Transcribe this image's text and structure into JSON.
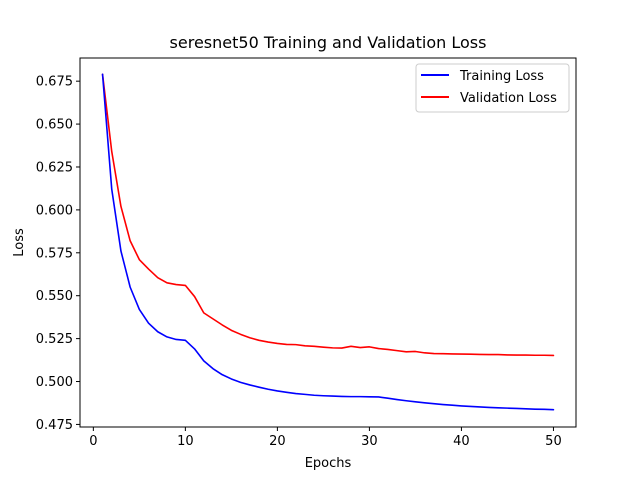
{
  "chart_data": {
    "type": "line",
    "title": "seresnet50 Training and Validation Loss",
    "xlabel": "Epochs",
    "ylabel": "Loss",
    "xlim": [
      -1.45,
      52.45
    ],
    "ylim": [
      0.4735,
      0.6885
    ],
    "xticks": [
      0,
      10,
      20,
      30,
      40,
      50
    ],
    "yticks": [
      0.475,
      0.5,
      0.525,
      0.55,
      0.575,
      0.6,
      0.625,
      0.65,
      0.675
    ],
    "ytick_labels": [
      "0.475",
      "0.500",
      "0.525",
      "0.550",
      "0.575",
      "0.600",
      "0.625",
      "0.650",
      "0.675"
    ],
    "grid": false,
    "legend_position": "top-right",
    "x": [
      1,
      2,
      3,
      4,
      5,
      6,
      7,
      8,
      9,
      10,
      11,
      12,
      13,
      14,
      15,
      16,
      17,
      18,
      19,
      20,
      21,
      22,
      23,
      24,
      25,
      26,
      27,
      28,
      29,
      30,
      31,
      32,
      33,
      34,
      35,
      36,
      37,
      38,
      39,
      40,
      41,
      42,
      43,
      44,
      45,
      46,
      47,
      48,
      49,
      50
    ],
    "series": [
      {
        "name": "Training Loss",
        "color": "#0000ff",
        "values": [
          0.679,
          0.612,
          0.576,
          0.555,
          0.542,
          0.534,
          0.529,
          0.526,
          0.5245,
          0.524,
          0.519,
          0.512,
          0.5075,
          0.504,
          0.5015,
          0.4995,
          0.498,
          0.4967,
          0.4955,
          0.4945,
          0.4937,
          0.493,
          0.4925,
          0.492,
          0.4917,
          0.4915,
          0.4913,
          0.4912,
          0.4912,
          0.4911,
          0.491,
          0.4903,
          0.4895,
          0.4888,
          0.4882,
          0.4876,
          0.4871,
          0.4866,
          0.4862,
          0.4858,
          0.4855,
          0.4852,
          0.4849,
          0.4847,
          0.4845,
          0.4843,
          0.4841,
          0.4839,
          0.4838,
          0.4836
        ]
      },
      {
        "name": "Validation Loss",
        "color": "#ff0000",
        "values": [
          0.679,
          0.634,
          0.602,
          0.582,
          0.571,
          0.5655,
          0.5605,
          0.5575,
          0.5565,
          0.556,
          0.5495,
          0.54,
          0.5365,
          0.533,
          0.5298,
          0.5275,
          0.5255,
          0.524,
          0.523,
          0.5222,
          0.5216,
          0.5215,
          0.5208,
          0.5205,
          0.52,
          0.5196,
          0.5195,
          0.5205,
          0.5198,
          0.5202,
          0.5192,
          0.5187,
          0.518,
          0.5173,
          0.5175,
          0.5167,
          0.5163,
          0.5162,
          0.5161,
          0.516,
          0.5159,
          0.5158,
          0.5157,
          0.5157,
          0.5155,
          0.5154,
          0.5154,
          0.5153,
          0.5153,
          0.5152
        ]
      }
    ]
  }
}
